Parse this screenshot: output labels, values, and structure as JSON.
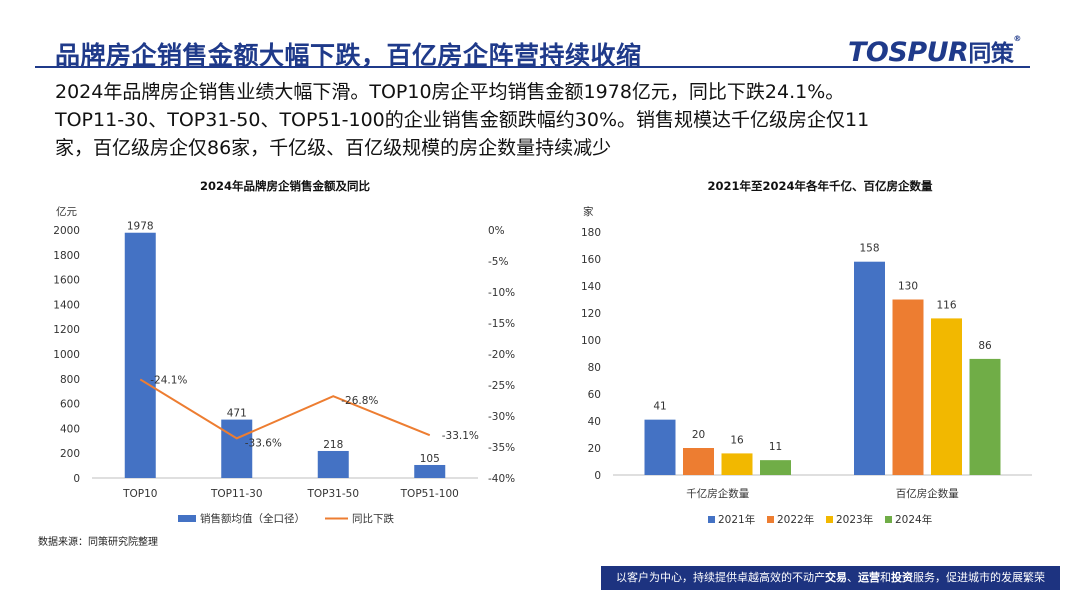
{
  "header": {
    "title": "品牌房企销售金额大幅下跌，百亿房企阵营持续收缩",
    "logo_text": "TOSPUR",
    "logo_cn": "同策",
    "logo_mark": "®"
  },
  "description": [
    "2024年品牌房企销售业绩大幅下滑。TOP10房企平均销售金额1978亿元，同比下跌24.1%。",
    "TOP11-30、TOP31-50、TOP51-100的企业销售金额跌幅约30%。销售规模达千亿级房企仅11",
    "家，百亿级房企仅86家，千亿级、百亿级规模的房企数量持续减少"
  ],
  "footer": {
    "source": "数据来源：同策研究院整理",
    "slogan_pre": "以客户为中心，持续提供卓越高效的不动产",
    "slogan_b1": "交易",
    "slogan_sep1": "、",
    "slogan_b2": "运营",
    "slogan_sep2": "和",
    "slogan_b3": "投资",
    "slogan_post": "服务，促进城市的发展繁荣"
  },
  "chart_data": [
    {
      "type": "bar",
      "title": "2024年品牌房企销售金额及同比",
      "ylabel": "亿元",
      "ylim": [
        0,
        2000
      ],
      "y2lim": [
        -40,
        0
      ],
      "yticks": [
        "0",
        "200",
        "400",
        "600",
        "800",
        "1000",
        "1200",
        "1400",
        "1600",
        "1800",
        "2000"
      ],
      "y2ticks": [
        "0%",
        "-5%",
        "-10%",
        "-15%",
        "-20%",
        "-25%",
        "-30%",
        "-35%",
        "-40%"
      ],
      "categories": [
        "TOP10",
        "TOP11-30",
        "TOP31-50",
        "TOP51-100"
      ],
      "series": [
        {
          "name": "销售额均值（全口径）",
          "kind": "bar",
          "color": "#4472c4",
          "values": [
            1978,
            471,
            218,
            105
          ],
          "labels": [
            "1978",
            "471",
            "218",
            "105"
          ]
        },
        {
          "name": "同比下跌",
          "kind": "line",
          "axis": "right",
          "color": "#ed7d31",
          "values": [
            -24.1,
            -33.6,
            -26.8,
            -33.1
          ],
          "labels": [
            "-24.1%",
            "-33.6%",
            "-26.8%",
            "-33.1%"
          ]
        }
      ],
      "legend": "bottom"
    },
    {
      "type": "bar",
      "title": "2021年至2024年各年千亿、百亿房企数量",
      "ylabel": "家",
      "ylim": [
        0,
        180
      ],
      "yticks": [
        "0",
        "20",
        "40",
        "60",
        "80",
        "100",
        "120",
        "140",
        "160",
        "180"
      ],
      "categories": [
        "千亿房企数量",
        "百亿房企数量"
      ],
      "series": [
        {
          "name": "2021年",
          "color": "#4472c4",
          "values": [
            41,
            158
          ],
          "labels": [
            "41",
            "158"
          ]
        },
        {
          "name": "2022年",
          "color": "#ed7d31",
          "values": [
            20,
            130
          ],
          "labels": [
            "20",
            "130"
          ]
        },
        {
          "name": "2023年",
          "color": "#f2b800",
          "values": [
            16,
            116
          ],
          "labels": [
            "16",
            "116"
          ]
        },
        {
          "name": "2024年",
          "color": "#70ad47",
          "values": [
            11,
            86
          ],
          "labels": [
            "11",
            "86"
          ]
        }
      ],
      "legend": "bottom"
    }
  ]
}
